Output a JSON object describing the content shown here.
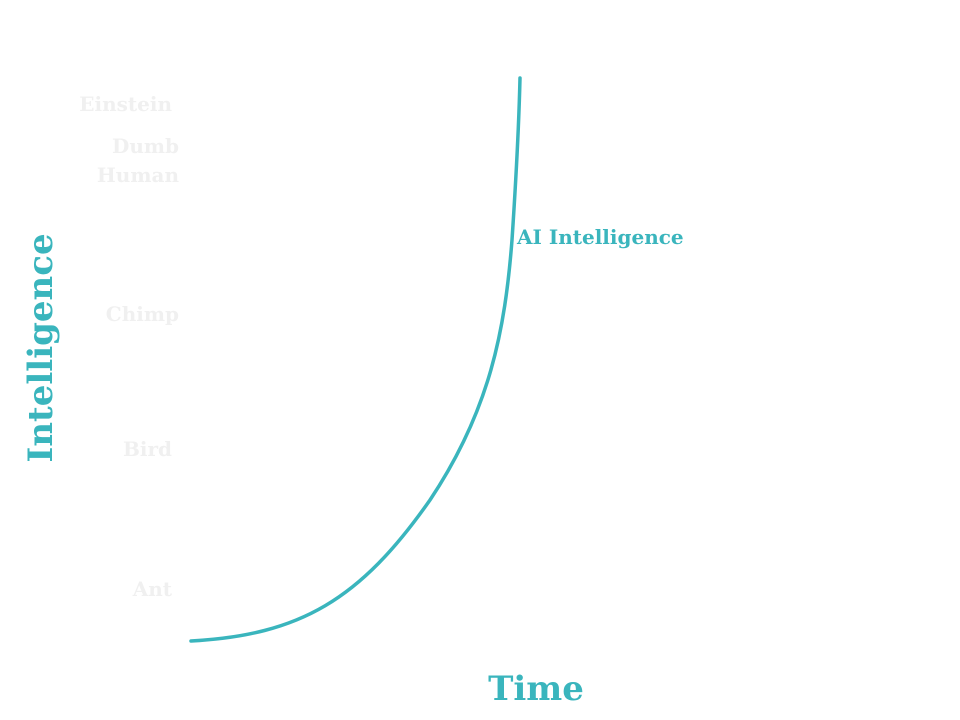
{
  "chart_data": {
    "type": "line",
    "title": "",
    "xlabel": "Time",
    "ylabel": "Intelligence",
    "grid": false,
    "legend": "none",
    "y_tick_labels": [
      "Ant",
      "Bird",
      "Chimp",
      "Dumb Human",
      "Einstein"
    ],
    "series": [
      {
        "name": "AI Intelligence",
        "shape": "exponential",
        "color": "#3ab5bd"
      }
    ],
    "colors": {
      "accent": "#3ab5bd",
      "tick_text": "#f0f0f0",
      "background": "#ffffff"
    }
  }
}
